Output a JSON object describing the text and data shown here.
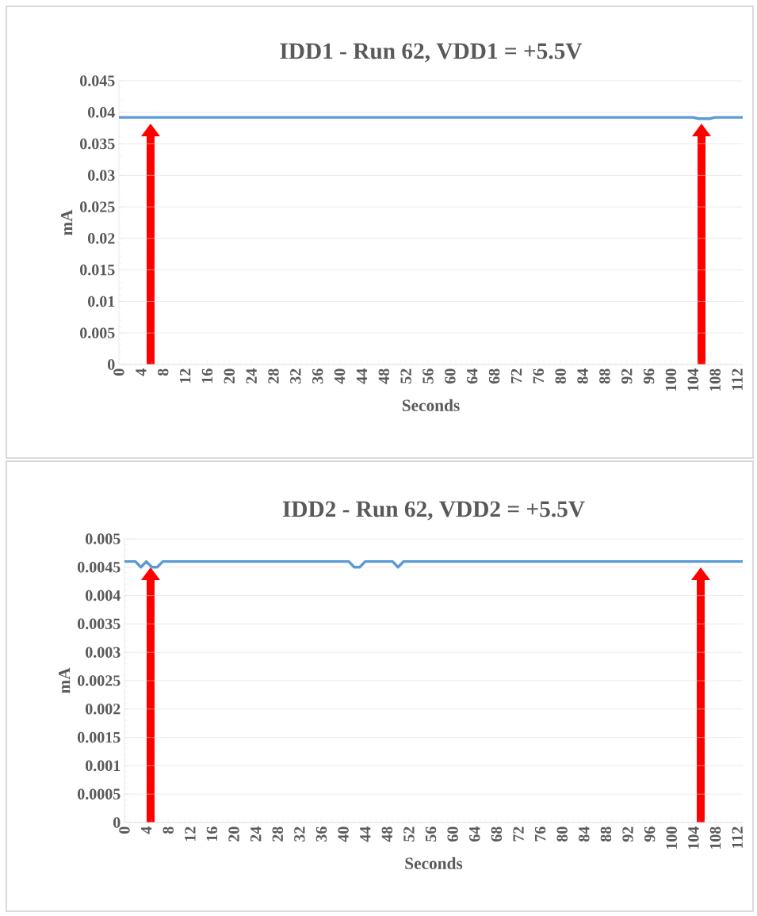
{
  "chart_data": [
    {
      "type": "line",
      "title": "IDD1 - Run 62, VDD1 = +5.5V",
      "xlabel": "Seconds",
      "ylabel": "mA",
      "series": [
        {
          "color": "#5b9bd5",
          "x": [
            0,
            104,
            105,
            107,
            108,
            113
          ],
          "values": [
            0.0392,
            0.0392,
            0.039,
            0.039,
            0.0392,
            0.0392
          ]
        }
      ],
      "xlim": [
        0,
        113
      ],
      "xticks": [
        0,
        4,
        8,
        12,
        16,
        20,
        24,
        28,
        32,
        36,
        40,
        44,
        48,
        52,
        56,
        60,
        64,
        68,
        72,
        76,
        80,
        84,
        88,
        92,
        96,
        100,
        104,
        108,
        112
      ],
      "ylim": [
        0,
        0.045
      ],
      "yticks": [
        0,
        0.005,
        0.01,
        0.015,
        0.02,
        0.025,
        0.03,
        0.035,
        0.04,
        0.045
      ],
      "grid": "y"
    },
    {
      "type": "line",
      "title": "IDD2 - Run 62, VDD2 = +5.5V",
      "xlabel": "Seconds",
      "ylabel": "mA",
      "series": [
        {
          "color": "#5b9bd5",
          "x": [
            0,
            2,
            3,
            4,
            5,
            6,
            7,
            41,
            42,
            43,
            44,
            49,
            50,
            51,
            113
          ],
          "values": [
            0.0046,
            0.0046,
            0.0045,
            0.0046,
            0.0045,
            0.0045,
            0.0046,
            0.0046,
            0.0045,
            0.0045,
            0.0046,
            0.0046,
            0.0045,
            0.0046,
            0.0046
          ]
        }
      ],
      "xlim": [
        0,
        113
      ],
      "xticks": [
        0,
        4,
        8,
        12,
        16,
        20,
        24,
        28,
        32,
        36,
        40,
        44,
        48,
        52,
        56,
        60,
        64,
        68,
        72,
        76,
        80,
        84,
        88,
        92,
        96,
        100,
        104,
        108,
        112
      ],
      "ylim": [
        0,
        0.005
      ],
      "yticks": [
        0,
        0.0005,
        0.001,
        0.0015,
        0.002,
        0.0025,
        0.003,
        0.0035,
        0.004,
        0.0045,
        0.005
      ],
      "grid": "y"
    }
  ]
}
